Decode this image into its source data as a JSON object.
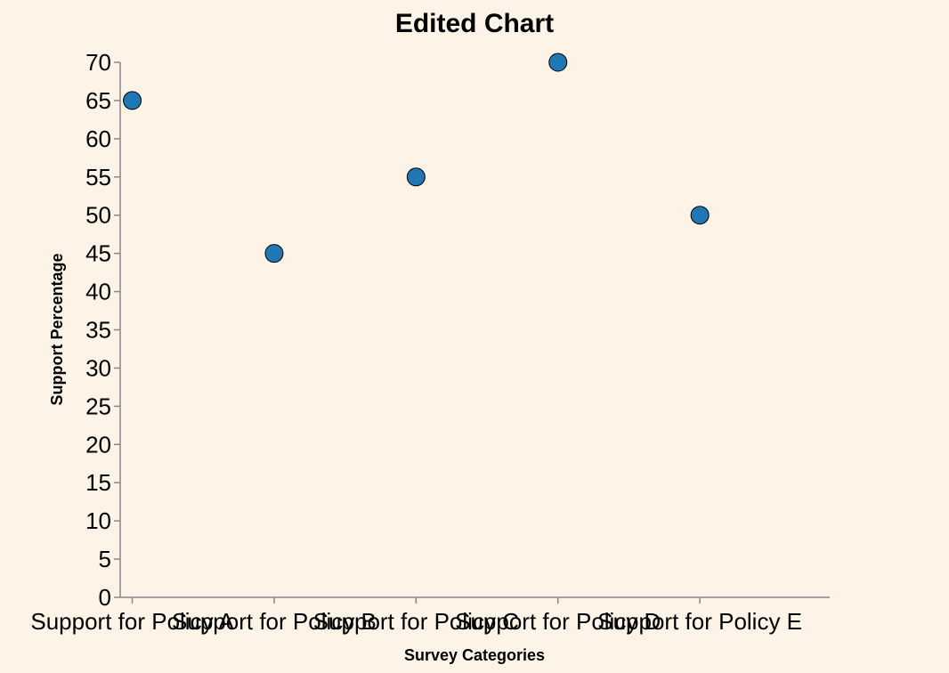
{
  "chart_data": {
    "type": "scatter",
    "title": "Edited Chart",
    "xlabel": "Survey Categories",
    "ylabel": "Support Percentage",
    "categories": [
      "Support for Policy A",
      "Support for Policy B",
      "Support for Policy C",
      "Support for Policy D",
      "Support for Policy E"
    ],
    "values": [
      65,
      45,
      55,
      70,
      50
    ],
    "ylim": [
      0,
      70
    ],
    "yticks": [
      0,
      5,
      10,
      15,
      20,
      25,
      30,
      35,
      40,
      45,
      50,
      55,
      60,
      65,
      70
    ],
    "grid": false,
    "point_color": "#1f77b4",
    "background": "#fdf3e6"
  }
}
